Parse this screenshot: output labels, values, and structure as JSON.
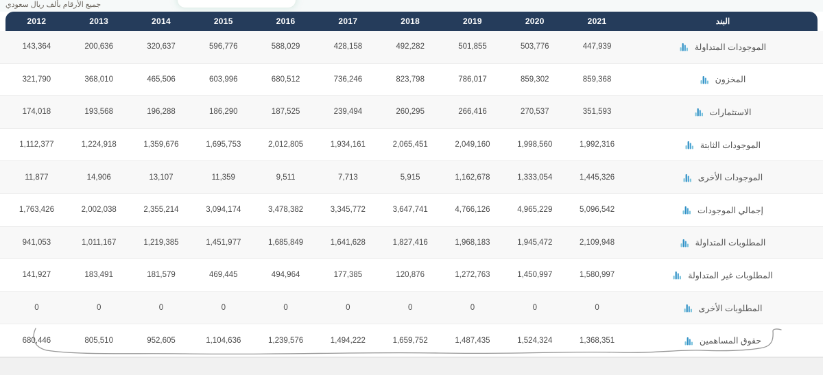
{
  "note": "جميع الأرقام بألف ريال سعودي",
  "table": {
    "item_header": "البند",
    "years": [
      "2012",
      "2013",
      "2014",
      "2015",
      "2016",
      "2017",
      "2018",
      "2019",
      "2020",
      "2021"
    ],
    "row_icon": "bar-chart-icon",
    "rows": [
      {
        "label": "الموجودات المتداولة",
        "values": [
          "143,364",
          "200,636",
          "320,637",
          "596,776",
          "588,029",
          "428,158",
          "492,282",
          "501,855",
          "503,776",
          "447,939"
        ]
      },
      {
        "label": "المخزون",
        "values": [
          "321,790",
          "368,010",
          "465,506",
          "603,996",
          "680,512",
          "736,246",
          "823,798",
          "786,017",
          "859,302",
          "859,368"
        ]
      },
      {
        "label": "الاستثمارات",
        "values": [
          "174,018",
          "193,568",
          "196,288",
          "186,290",
          "187,525",
          "239,494",
          "260,295",
          "266,416",
          "270,537",
          "351,593"
        ]
      },
      {
        "label": "الموجودات الثابتة",
        "values": [
          "1,112,377",
          "1,224,918",
          "1,359,676",
          "1,695,753",
          "2,012,805",
          "1,934,161",
          "2,065,451",
          "2,049,160",
          "1,998,560",
          "1,992,316"
        ]
      },
      {
        "label": "الموجودات الأخرى",
        "values": [
          "11,877",
          "14,906",
          "13,107",
          "11,359",
          "9,511",
          "7,713",
          "5,915",
          "1,162,678",
          "1,333,054",
          "1,445,326"
        ]
      },
      {
        "label": "إجمالي الموجودات",
        "values": [
          "1,763,426",
          "2,002,038",
          "2,355,214",
          "3,094,174",
          "3,478,382",
          "3,345,772",
          "3,647,741",
          "4,766,126",
          "4,965,229",
          "5,096,542"
        ]
      },
      {
        "label": "المطلوبات المتداولة",
        "values": [
          "941,053",
          "1,011,167",
          "1,219,385",
          "1,451,977",
          "1,685,849",
          "1,641,628",
          "1,827,416",
          "1,968,183",
          "1,945,472",
          "2,109,948"
        ]
      },
      {
        "label": "المطلوبات غير المتداولة",
        "values": [
          "141,927",
          "183,491",
          "181,579",
          "469,445",
          "494,964",
          "177,385",
          "120,876",
          "1,272,763",
          "1,450,997",
          "1,580,997"
        ]
      },
      {
        "label": "المطلوبات الأخرى",
        "values": [
          "0",
          "0",
          "0",
          "0",
          "0",
          "0",
          "0",
          "0",
          "0",
          "0"
        ]
      },
      {
        "label": "حقوق المساهمين",
        "values": [
          "680,446",
          "805,510",
          "952,605",
          "1,104,636",
          "1,239,576",
          "1,494,222",
          "1,659,752",
          "1,487,435",
          "1,524,324",
          "1,368,351"
        ]
      }
    ]
  },
  "colors": {
    "header_bg": "#253c5b",
    "header_text": "#ffffff",
    "value_text": "#4b4b4b",
    "label_text": "#545454",
    "stripe_bg": "#f8f8f8",
    "icon_blue_dark": "#2e8fc4",
    "icon_blue_light": "#7cc3dc",
    "squiggle": "#8b8b8b"
  }
}
